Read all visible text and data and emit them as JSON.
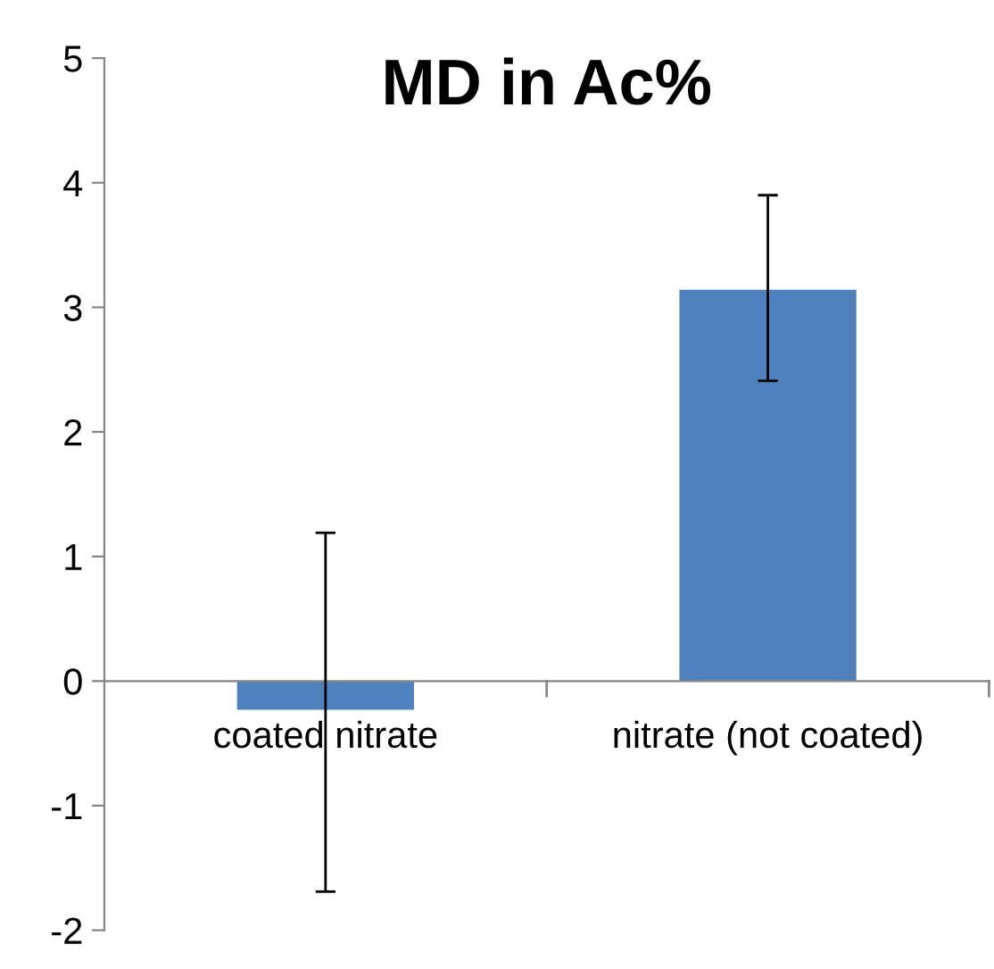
{
  "chart_data": {
    "type": "bar",
    "title": "MD in Ac%",
    "categories": [
      "coated nitrate",
      "nitrate (not coated)"
    ],
    "values": [
      -0.23,
      3.14
    ],
    "errors": [
      [
        -1.69,
        1.19
      ],
      [
        2.41,
        3.9
      ]
    ],
    "color": "#4f81bd",
    "ylim": [
      -2,
      5
    ],
    "yticks": [
      -2,
      -1,
      0,
      1,
      2,
      3,
      4,
      5
    ],
    "grid": false,
    "legend": false
  }
}
